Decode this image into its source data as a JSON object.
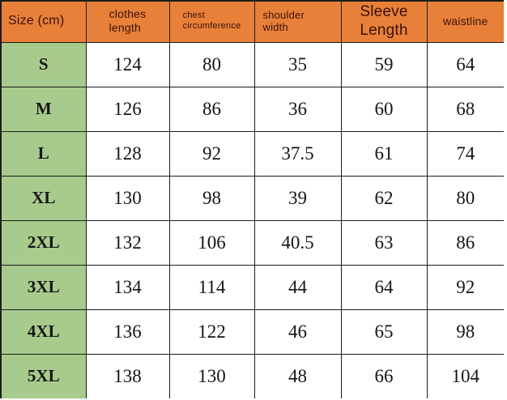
{
  "colors": {
    "header_bg": "#E8803A",
    "header_text": "#3A1208",
    "size_col_bg": "#A8CB8D",
    "cell_bg": "#FFFFFF",
    "border": "#1C1C1C",
    "cell_text": "#151515"
  },
  "table": {
    "header": [
      {
        "key": "size",
        "lines": [
          "Size (cm)"
        ]
      },
      {
        "key": "clothes-length",
        "lines": [
          "clothes",
          "length"
        ]
      },
      {
        "key": "chest-circumference",
        "lines": [
          "chest",
          "circumference"
        ]
      },
      {
        "key": "shoulder-width",
        "lines": [
          "shoulder",
          "width"
        ]
      },
      {
        "key": "sleeve-length",
        "lines": [
          "Sleeve",
          "Length"
        ]
      },
      {
        "key": "waistline",
        "lines": [
          "waistline"
        ]
      }
    ],
    "rows": [
      {
        "size": "S",
        "values": [
          "124",
          "80",
          "35",
          "59",
          "64"
        ]
      },
      {
        "size": "M",
        "values": [
          "126",
          "86",
          "36",
          "60",
          "68"
        ]
      },
      {
        "size": "L",
        "values": [
          "128",
          "92",
          "37.5",
          "61",
          "74"
        ]
      },
      {
        "size": "XL",
        "values": [
          "130",
          "98",
          "39",
          "62",
          "80"
        ]
      },
      {
        "size": "2XL",
        "values": [
          "132",
          "106",
          "40.5",
          "63",
          "86"
        ]
      },
      {
        "size": "3XL",
        "values": [
          "134",
          "114",
          "44",
          "64",
          "92"
        ]
      },
      {
        "size": "4XL",
        "values": [
          "136",
          "122",
          "46",
          "65",
          "98"
        ]
      },
      {
        "size": "5XL",
        "values": [
          "138",
          "130",
          "48",
          "66",
          "104"
        ]
      }
    ]
  },
  "chart_data": {
    "type": "table",
    "title": "Size (cm)",
    "columns": [
      "Size (cm)",
      "clothes length",
      "chest circumference",
      "shoulder width",
      "Sleeve Length",
      "waistline"
    ],
    "rows": [
      [
        "S",
        124,
        80,
        35,
        59,
        64
      ],
      [
        "M",
        126,
        86,
        36,
        60,
        68
      ],
      [
        "L",
        128,
        92,
        37.5,
        61,
        74
      ],
      [
        "XL",
        130,
        98,
        39,
        62,
        80
      ],
      [
        "2XL",
        132,
        106,
        40.5,
        63,
        86
      ],
      [
        "3XL",
        134,
        114,
        44,
        64,
        92
      ],
      [
        "4XL",
        136,
        122,
        46,
        65,
        98
      ],
      [
        "5XL",
        138,
        130,
        48,
        66,
        104
      ]
    ]
  }
}
